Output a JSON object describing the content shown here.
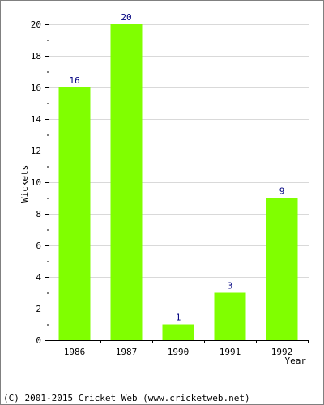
{
  "chart_data": {
    "type": "bar",
    "categories": [
      "1986",
      "1987",
      "1990",
      "1991",
      "1992"
    ],
    "values": [
      16,
      20,
      1,
      3,
      9
    ],
    "title": "",
    "xlabel": "Year",
    "ylabel": "Wickets",
    "ylim": [
      0,
      20
    ],
    "yticks": [
      0,
      2,
      4,
      6,
      8,
      10,
      12,
      14,
      16,
      18,
      20
    ],
    "grid": true,
    "data_labels": true,
    "colors": {
      "bar": "#80ff00",
      "grid": "#d9d9d9",
      "axis": "#000000",
      "data_label": "#000080",
      "frame": "#808080"
    }
  },
  "footer": {
    "copyright": "(C) 2001-2015 Cricket Web (www.cricketweb.net)"
  }
}
